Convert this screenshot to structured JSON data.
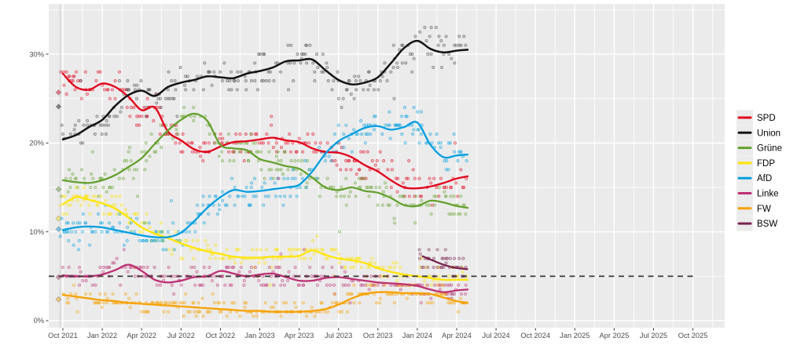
{
  "chart_data": {
    "type": "scatter",
    "description": "German federal election polling: individual poll results as semi-transparent points with smoothed trend lines per party, 5% threshold dashed line, Sep-2021 election results as diamonds",
    "x_axis": {
      "tick_labels": [
        "Oct 2021",
        "Jan 2022",
        "Apr 2022",
        "Jul 2022",
        "Oct 2022",
        "Jan 2023",
        "Apr 2023",
        "Jul 2023",
        "Oct 2023",
        "Jan 2024",
        "Apr 2024",
        "Jul 2024",
        "Oct 2024",
        "Jan 2025",
        "Apr 2025",
        "Jul 2025",
        "Oct 2025"
      ],
      "tick_interval_months": 3,
      "range": [
        "Sep 2021",
        "Nov 2025"
      ]
    },
    "y_axis": {
      "tick_labels": [
        "0%",
        "10%",
        "20%",
        "30%"
      ],
      "tick_values": [
        0,
        10,
        20,
        30
      ],
      "minor_tick_values": [
        5,
        15,
        25,
        35
      ],
      "range": [
        0,
        35.6
      ]
    },
    "grid": "on",
    "threshold_line": {
      "value": 5,
      "style": "dashed",
      "extends_beyond_data_until": "Oct 2025"
    },
    "election_2021_results": {
      "SPD": 25.7,
      "Union": 24.1,
      "Grüne": 14.8,
      "FDP": 11.5,
      "AfD": 10.3,
      "Linke": 4.9,
      "FW": 2.4
    },
    "series_monthly_start": "Oct 2021",
    "series_monthly_end": "Apr 2024",
    "series": [
      {
        "name": "SPD",
        "color": "#e2001a",
        "values": [
          27.8,
          26.3,
          26.0,
          26.7,
          26.3,
          25.2,
          23.7,
          24.0,
          21.3,
          20.3,
          19.3,
          19.0,
          19.6,
          20.1,
          20.2,
          20.4,
          20.6,
          20.3,
          20.1,
          19.4,
          19.0,
          18.9,
          18.4,
          17.5,
          16.8,
          15.8,
          15.0,
          14.9,
          15.1,
          15.5,
          16.0
        ]
      },
      {
        "name": "Union",
        "color": "#141414",
        "values": [
          20.4,
          20.9,
          21.8,
          22.6,
          24.2,
          25.4,
          25.9,
          25.3,
          26.3,
          26.8,
          27.1,
          27.5,
          27.4,
          27.3,
          27.8,
          28.1,
          28.5,
          29.2,
          29.3,
          29.4,
          28.2,
          27.1,
          26.6,
          26.8,
          27.4,
          29.0,
          30.7,
          31.5,
          30.6,
          30.2,
          30.4
        ]
      },
      {
        "name": "Grüne",
        "color": "#64a12d",
        "values": [
          15.8,
          15.6,
          15.5,
          15.8,
          16.4,
          17.3,
          18.3,
          19.9,
          21.4,
          22.6,
          23.3,
          22.5,
          19.8,
          19.4,
          19.2,
          18.2,
          17.8,
          17.4,
          17.1,
          16.1,
          15.0,
          14.7,
          15.0,
          14.6,
          14.4,
          13.8,
          13.0,
          12.9,
          13.5,
          13.3,
          12.9
        ]
      },
      {
        "name": "FDP",
        "color": "#ffe500",
        "values": [
          13.1,
          13.9,
          13.6,
          13.2,
          12.6,
          11.6,
          10.5,
          9.8,
          9.3,
          8.7,
          8.2,
          7.8,
          7.5,
          7.2,
          7.1,
          7.1,
          7.2,
          7.2,
          7.3,
          7.9,
          7.4,
          7.0,
          6.8,
          6.5,
          5.9,
          5.5,
          5.2,
          5.0,
          4.8,
          4.6,
          4.6
        ]
      },
      {
        "name": "AfD",
        "color": "#009ee0",
        "values": [
          10.2,
          10.5,
          10.6,
          10.5,
          10.2,
          9.9,
          9.6,
          9.4,
          9.4,
          9.9,
          11.2,
          12.7,
          13.9,
          14.7,
          14.5,
          14.6,
          14.8,
          15.0,
          15.3,
          16.8,
          18.8,
          20.2,
          21.0,
          21.7,
          21.9,
          21.5,
          21.8,
          22.3,
          19.8,
          18.4,
          18.6
        ]
      },
      {
        "name": "Linke",
        "color": "#be3075",
        "values": [
          5.1,
          5.0,
          5.0,
          5.2,
          5.7,
          6.3,
          5.6,
          4.6,
          4.3,
          4.5,
          4.9,
          5.0,
          5.6,
          5.3,
          5.0,
          5.2,
          5.3,
          4.9,
          4.5,
          4.5,
          4.8,
          4.9,
          4.7,
          4.5,
          4.3,
          4.2,
          4.1,
          3.9,
          3.5,
          3.2,
          3.4
        ]
      },
      {
        "name": "FW",
        "color": "#f7a100",
        "values": [
          2.9,
          2.7,
          2.5,
          2.3,
          2.2,
          2.0,
          1.9,
          1.8,
          1.7,
          1.6,
          1.5,
          1.4,
          1.3,
          1.2,
          1.1,
          1.1,
          1.0,
          1.0,
          1.0,
          1.1,
          1.3,
          1.8,
          2.5,
          3.0,
          3.2,
          3.2,
          3.1,
          3.1,
          3.0,
          2.6,
          2.2
        ]
      },
      {
        "name": "BSW",
        "color": "#792350",
        "points_month_value": [
          [
            27.4,
            7.25
          ],
          [
            28.3,
            6.7
          ],
          [
            29.1,
            6.25
          ],
          [
            29.9,
            5.95
          ],
          [
            30.8,
            5.8
          ]
        ]
      }
    ],
    "legend": {
      "position": "right",
      "entries": [
        "SPD",
        "Union",
        "Grüne",
        "FDP",
        "AfD",
        "Linke",
        "FW",
        "BSW"
      ]
    }
  },
  "style": {
    "panel_bg": "#ebebeb",
    "grid_color": "#ffffff",
    "axis_text_color": "#4d4d4d",
    "tick_mark_color": "#333333",
    "threshold_color": "#3a3a3a",
    "election_line_color": "#d5d5d5",
    "legend_key_bg": "#ebebeb",
    "legend_text_color": "#000000"
  }
}
